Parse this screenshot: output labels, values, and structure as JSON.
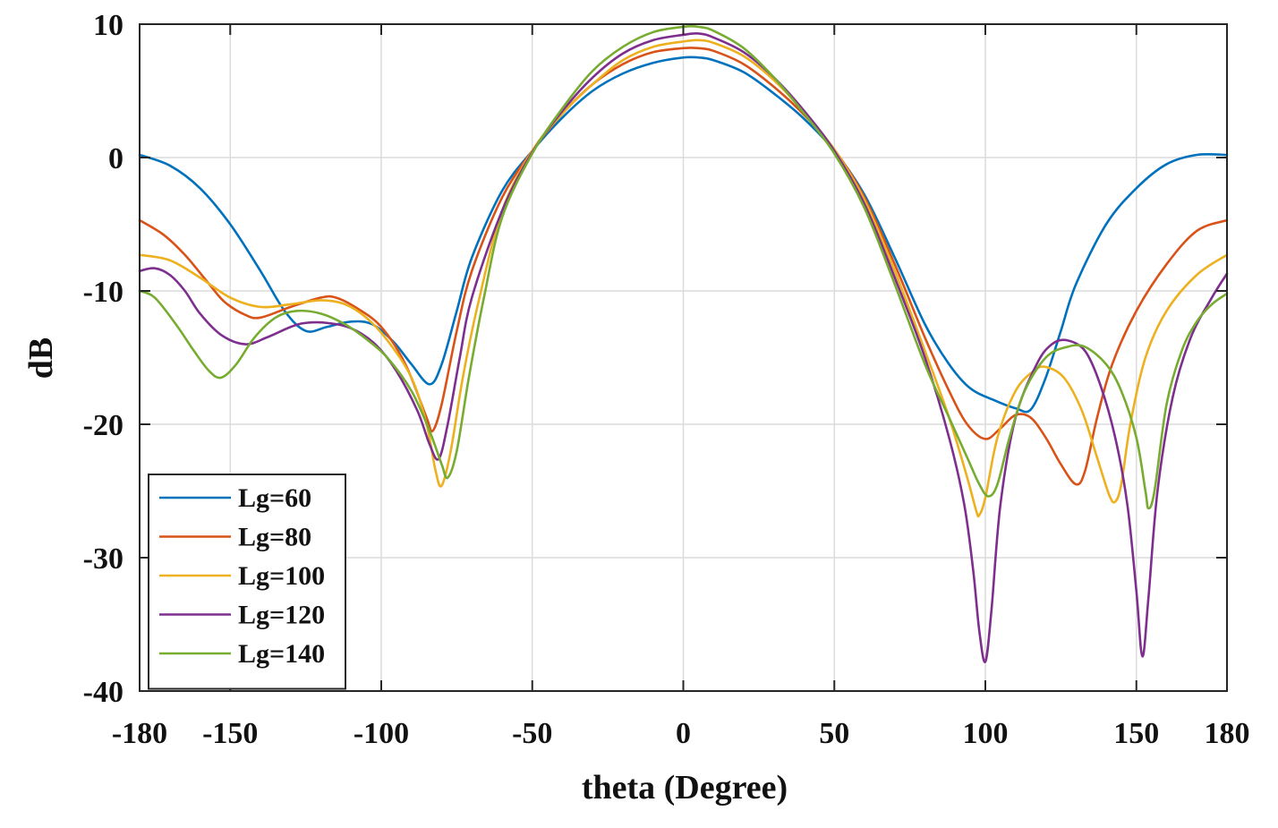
{
  "chart_data": {
    "type": "line",
    "title": "",
    "xlabel": "theta (Degree)",
    "ylabel": "dB",
    "xlim": [
      -180,
      180
    ],
    "ylim": [
      -40,
      10
    ],
    "grid": true,
    "legend_position": "bottom-left",
    "xticks": [
      -180,
      -150,
      -100,
      -50,
      0,
      50,
      100,
      150,
      180
    ],
    "xtick_labels": [
      "-180",
      "-150",
      "-100",
      "-50",
      "0",
      "50",
      "100",
      "150",
      "180"
    ],
    "yticks": [
      10,
      0,
      -10,
      -20,
      -30,
      -40
    ],
    "ytick_labels": [
      "10",
      "0",
      "-10",
      "-20",
      "-30",
      "-40"
    ],
    "series": [
      {
        "name": "Lg=60",
        "color": "#0072BD",
        "points": [
          [
            -180,
            0.2
          ],
          [
            -170,
            -0.6
          ],
          [
            -160,
            -2.3
          ],
          [
            -150,
            -5.0
          ],
          [
            -140,
            -8.5
          ],
          [
            -132,
            -11.5
          ],
          [
            -125,
            -13.0
          ],
          [
            -118,
            -12.7
          ],
          [
            -110,
            -12.3
          ],
          [
            -103,
            -12.5
          ],
          [
            -96,
            -13.8
          ],
          [
            -90,
            -15.5
          ],
          [
            -84,
            -17.0
          ],
          [
            -80,
            -15.5
          ],
          [
            -75,
            -11.5
          ],
          [
            -70,
            -7.5
          ],
          [
            -60,
            -2.5
          ],
          [
            -50,
            0.5
          ],
          [
            -40,
            3.0
          ],
          [
            -30,
            5.0
          ],
          [
            -20,
            6.3
          ],
          [
            -10,
            7.1
          ],
          [
            0,
            7.5
          ],
          [
            5,
            7.5
          ],
          [
            10,
            7.3
          ],
          [
            20,
            6.4
          ],
          [
            30,
            4.8
          ],
          [
            40,
            2.9
          ],
          [
            50,
            0.5
          ],
          [
            60,
            -2.8
          ],
          [
            70,
            -7.5
          ],
          [
            80,
            -12.5
          ],
          [
            88,
            -15.5
          ],
          [
            95,
            -17.3
          ],
          [
            103,
            -18.2
          ],
          [
            110,
            -18.8
          ],
          [
            115,
            -18.9
          ],
          [
            120,
            -16.5
          ],
          [
            125,
            -13.0
          ],
          [
            130,
            -9.5
          ],
          [
            140,
            -5.0
          ],
          [
            150,
            -2.3
          ],
          [
            160,
            -0.5
          ],
          [
            170,
            0.2
          ],
          [
            180,
            0.2
          ]
        ]
      },
      {
        "name": "Lg=80",
        "color": "#D95319",
        "points": [
          [
            -180,
            -4.7
          ],
          [
            -172,
            -5.8
          ],
          [
            -165,
            -7.3
          ],
          [
            -158,
            -9.2
          ],
          [
            -152,
            -10.8
          ],
          [
            -145,
            -11.8
          ],
          [
            -140,
            -12.0
          ],
          [
            -130,
            -11.2
          ],
          [
            -120,
            -10.5
          ],
          [
            -115,
            -10.5
          ],
          [
            -108,
            -11.3
          ],
          [
            -100,
            -12.7
          ],
          [
            -92,
            -15.5
          ],
          [
            -85,
            -19.5
          ],
          [
            -83,
            -20.5
          ],
          [
            -80,
            -18.5
          ],
          [
            -75,
            -13.0
          ],
          [
            -70,
            -8.5
          ],
          [
            -60,
            -3.0
          ],
          [
            -50,
            0.5
          ],
          [
            -40,
            3.3
          ],
          [
            -30,
            5.5
          ],
          [
            -20,
            7.0
          ],
          [
            -10,
            7.9
          ],
          [
            0,
            8.2
          ],
          [
            5,
            8.2
          ],
          [
            10,
            8.0
          ],
          [
            20,
            7.0
          ],
          [
            30,
            5.3
          ],
          [
            40,
            3.2
          ],
          [
            50,
            0.6
          ],
          [
            60,
            -3.0
          ],
          [
            70,
            -8.0
          ],
          [
            80,
            -13.5
          ],
          [
            88,
            -17.5
          ],
          [
            94,
            -20.0
          ],
          [
            100,
            -21.1
          ],
          [
            105,
            -20.3
          ],
          [
            110,
            -19.3
          ],
          [
            115,
            -19.5
          ],
          [
            120,
            -21.0
          ],
          [
            125,
            -23.0
          ],
          [
            130,
            -24.5
          ],
          [
            133,
            -23.5
          ],
          [
            137,
            -19.5
          ],
          [
            142,
            -15.5
          ],
          [
            150,
            -11.5
          ],
          [
            160,
            -8.0
          ],
          [
            170,
            -5.5
          ],
          [
            180,
            -4.7
          ]
        ]
      },
      {
        "name": "Lg=100",
        "color": "#EDB120",
        "points": [
          [
            -180,
            -7.3
          ],
          [
            -170,
            -7.7
          ],
          [
            -160,
            -9.0
          ],
          [
            -150,
            -10.5
          ],
          [
            -140,
            -11.2
          ],
          [
            -130,
            -11.0
          ],
          [
            -120,
            -10.7
          ],
          [
            -112,
            -11.0
          ],
          [
            -105,
            -12.0
          ],
          [
            -98,
            -13.7
          ],
          [
            -90,
            -16.5
          ],
          [
            -85,
            -20.0
          ],
          [
            -82,
            -23.5
          ],
          [
            -80,
            -24.6
          ],
          [
            -77,
            -22.0
          ],
          [
            -73,
            -16.5
          ],
          [
            -68,
            -11.0
          ],
          [
            -60,
            -4.0
          ],
          [
            -50,
            0.5
          ],
          [
            -40,
            3.3
          ],
          [
            -30,
            5.5
          ],
          [
            -20,
            7.3
          ],
          [
            -10,
            8.3
          ],
          [
            0,
            8.7
          ],
          [
            5,
            8.8
          ],
          [
            10,
            8.6
          ],
          [
            20,
            7.6
          ],
          [
            30,
            5.8
          ],
          [
            40,
            3.4
          ],
          [
            50,
            0.6
          ],
          [
            60,
            -3.2
          ],
          [
            70,
            -8.5
          ],
          [
            80,
            -14.5
          ],
          [
            88,
            -19.5
          ],
          [
            94,
            -24.0
          ],
          [
            97,
            -26.5
          ],
          [
            98,
            -26.8
          ],
          [
            100,
            -25.5
          ],
          [
            104,
            -21.0
          ],
          [
            110,
            -17.5
          ],
          [
            116,
            -16.0
          ],
          [
            120,
            -15.7
          ],
          [
            126,
            -16.5
          ],
          [
            132,
            -19.0
          ],
          [
            137,
            -22.5
          ],
          [
            141,
            -25.3
          ],
          [
            143,
            -25.8
          ],
          [
            145,
            -24.5
          ],
          [
            148,
            -20.0
          ],
          [
            153,
            -15.0
          ],
          [
            160,
            -11.5
          ],
          [
            170,
            -8.8
          ],
          [
            180,
            -7.3
          ]
        ]
      },
      {
        "name": "Lg=120",
        "color": "#7E2F8E",
        "points": [
          [
            -180,
            -8.5
          ],
          [
            -175,
            -8.3
          ],
          [
            -170,
            -8.8
          ],
          [
            -165,
            -10.0
          ],
          [
            -160,
            -11.7
          ],
          [
            -153,
            -13.3
          ],
          [
            -145,
            -14.0
          ],
          [
            -138,
            -13.5
          ],
          [
            -130,
            -12.7
          ],
          [
            -125,
            -12.4
          ],
          [
            -118,
            -12.4
          ],
          [
            -110,
            -12.8
          ],
          [
            -102,
            -14.0
          ],
          [
            -95,
            -16.0
          ],
          [
            -88,
            -19.0
          ],
          [
            -84,
            -21.5
          ],
          [
            -81,
            -22.6
          ],
          [
            -78,
            -20.0
          ],
          [
            -74,
            -15.0
          ],
          [
            -70,
            -10.5
          ],
          [
            -60,
            -4.0
          ],
          [
            -50,
            0.4
          ],
          [
            -40,
            3.5
          ],
          [
            -30,
            6.0
          ],
          [
            -20,
            7.8
          ],
          [
            -10,
            8.8
          ],
          [
            0,
            9.2
          ],
          [
            5,
            9.3
          ],
          [
            10,
            9.0
          ],
          [
            20,
            7.9
          ],
          [
            30,
            6.0
          ],
          [
            40,
            3.5
          ],
          [
            50,
            0.5
          ],
          [
            60,
            -3.5
          ],
          [
            70,
            -9.0
          ],
          [
            80,
            -15.0
          ],
          [
            88,
            -21.0
          ],
          [
            93,
            -26.0
          ],
          [
            96,
            -31.0
          ],
          [
            98,
            -35.5
          ],
          [
            100,
            -37.8
          ],
          [
            102,
            -34.0
          ],
          [
            105,
            -26.0
          ],
          [
            110,
            -19.5
          ],
          [
            117,
            -15.5
          ],
          [
            122,
            -14.0
          ],
          [
            127,
            -13.7
          ],
          [
            133,
            -14.5
          ],
          [
            138,
            -17.0
          ],
          [
            143,
            -21.0
          ],
          [
            147,
            -26.0
          ],
          [
            150,
            -32.5
          ],
          [
            152,
            -37.4
          ],
          [
            154,
            -33.0
          ],
          [
            157,
            -25.0
          ],
          [
            162,
            -18.0
          ],
          [
            168,
            -13.5
          ],
          [
            175,
            -10.5
          ],
          [
            180,
            -8.7
          ]
        ]
      },
      {
        "name": "Lg=140",
        "color": "#77AC30",
        "points": [
          [
            -180,
            -10.0
          ],
          [
            -175,
            -10.5
          ],
          [
            -168,
            -12.5
          ],
          [
            -162,
            -14.5
          ],
          [
            -157,
            -16.0
          ],
          [
            -153,
            -16.5
          ],
          [
            -148,
            -15.5
          ],
          [
            -142,
            -13.5
          ],
          [
            -135,
            -12.0
          ],
          [
            -128,
            -11.5
          ],
          [
            -120,
            -11.7
          ],
          [
            -112,
            -12.5
          ],
          [
            -105,
            -13.6
          ],
          [
            -98,
            -15.0
          ],
          [
            -90,
            -17.5
          ],
          [
            -84,
            -20.5
          ],
          [
            -80,
            -23.0
          ],
          [
            -78,
            -24.0
          ],
          [
            -75,
            -22.0
          ],
          [
            -71,
            -16.5
          ],
          [
            -66,
            -10.5
          ],
          [
            -60,
            -4.5
          ],
          [
            -50,
            0.3
          ],
          [
            -40,
            3.7
          ],
          [
            -30,
            6.5
          ],
          [
            -20,
            8.3
          ],
          [
            -10,
            9.4
          ],
          [
            0,
            9.8
          ],
          [
            5,
            9.8
          ],
          [
            10,
            9.5
          ],
          [
            20,
            8.2
          ],
          [
            30,
            6.0
          ],
          [
            40,
            3.3
          ],
          [
            50,
            0.3
          ],
          [
            60,
            -3.8
          ],
          [
            70,
            -9.5
          ],
          [
            80,
            -15.5
          ],
          [
            88,
            -19.5
          ],
          [
            94,
            -22.5
          ],
          [
            98,
            -24.5
          ],
          [
            101,
            -25.4
          ],
          [
            104,
            -24.5
          ],
          [
            108,
            -21.0
          ],
          [
            113,
            -17.5
          ],
          [
            120,
            -15.0
          ],
          [
            127,
            -14.2
          ],
          [
            133,
            -14.2
          ],
          [
            140,
            -15.5
          ],
          [
            145,
            -17.5
          ],
          [
            150,
            -21.0
          ],
          [
            153,
            -25.0
          ],
          [
            154,
            -26.3
          ],
          [
            156,
            -25.0
          ],
          [
            160,
            -18.5
          ],
          [
            165,
            -14.5
          ],
          [
            170,
            -12.3
          ],
          [
            175,
            -11.0
          ],
          [
            180,
            -10.2
          ]
        ]
      }
    ]
  }
}
